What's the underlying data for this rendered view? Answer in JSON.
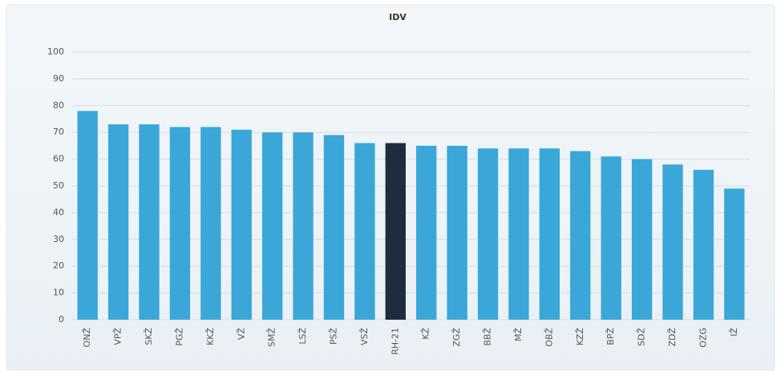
{
  "chart_data": {
    "type": "bar",
    "title": "IDV",
    "categories": [
      "ONŽ",
      "VPŽ",
      "SKŽ",
      "PGŽ",
      "KKŽ",
      "VŽ",
      "SMŽ",
      "LSŽ",
      "PSŽ",
      "VSŽ",
      "RH-21",
      "KŽ",
      "ZGŽ",
      "BBŽ",
      "MŽ",
      "OBŽ",
      "KZŽ",
      "BPŽ",
      "SDŽ",
      "ZDŽ",
      "OZG",
      "IŽ"
    ],
    "values": [
      78,
      73,
      73,
      72,
      72,
      71,
      70,
      70,
      69,
      66,
      66,
      65,
      65,
      64,
      64,
      64,
      63,
      61,
      60,
      58,
      56,
      49
    ],
    "colors": [
      "#3aa7d8",
      "#3aa7d8",
      "#3aa7d8",
      "#3aa7d8",
      "#3aa7d8",
      "#3aa7d8",
      "#3aa7d8",
      "#3aa7d8",
      "#3aa7d8",
      "#3aa7d8",
      "#1e2c3e",
      "#3aa7d8",
      "#3aa7d8",
      "#3aa7d8",
      "#3aa7d8",
      "#3aa7d8",
      "#3aa7d8",
      "#3aa7d8",
      "#3aa7d8",
      "#3aa7d8",
      "#3aa7d8",
      "#3aa7d8"
    ],
    "ylim": [
      0,
      100
    ],
    "yticks": [
      0,
      10,
      20,
      30,
      40,
      50,
      60,
      70,
      80,
      90,
      100
    ],
    "grid": true
  }
}
